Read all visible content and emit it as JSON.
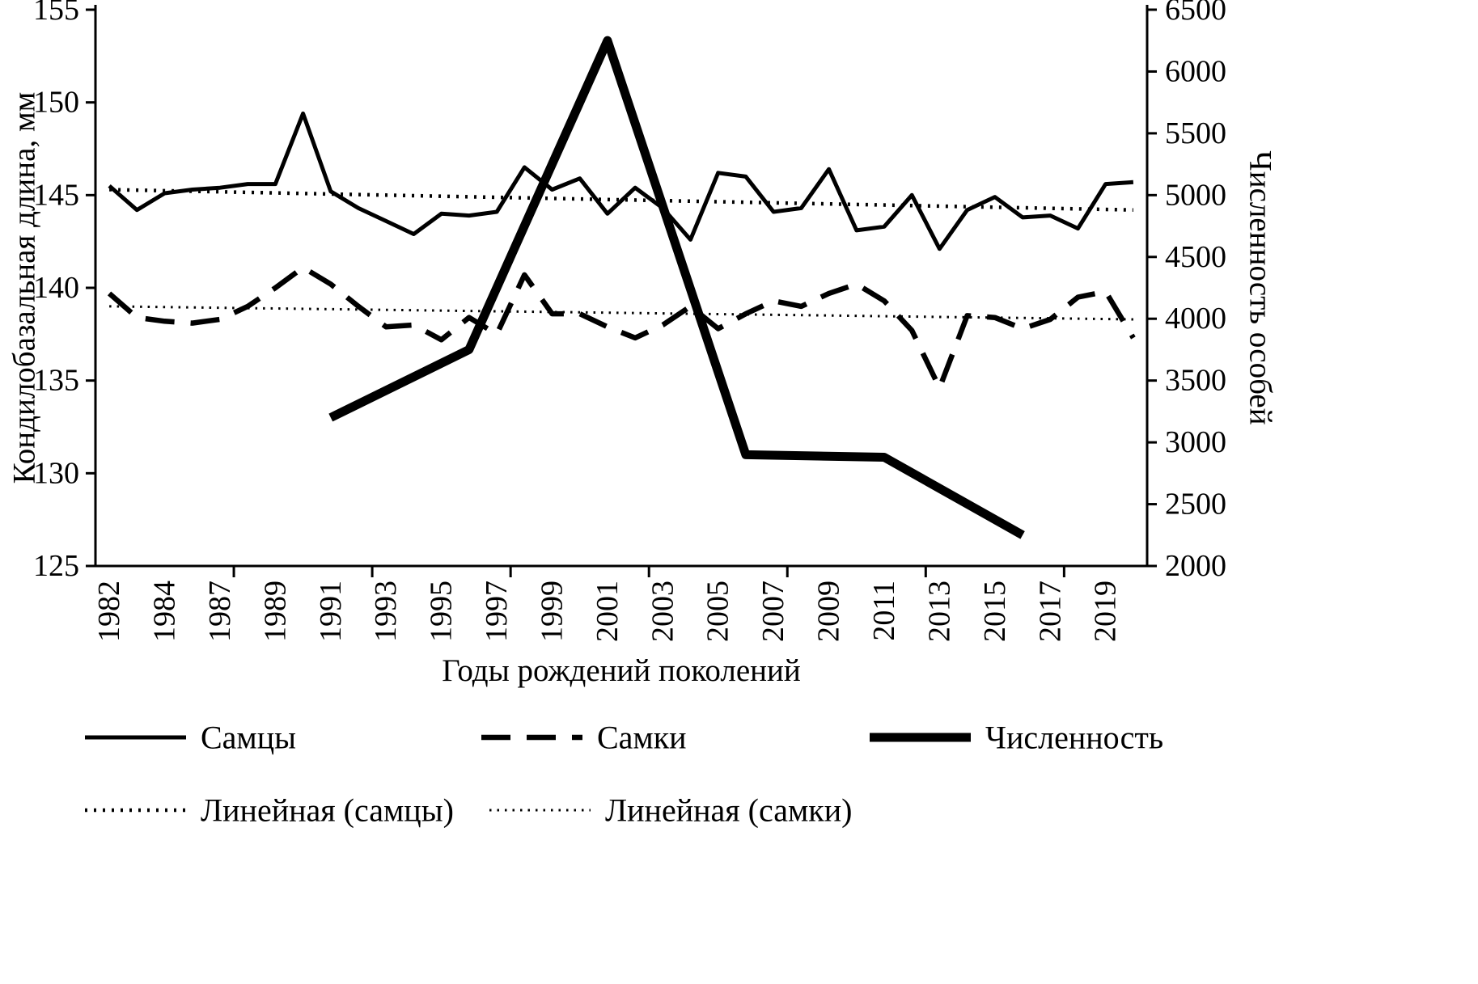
{
  "figure": {
    "legend_rows": [
      [
        "males",
        "females",
        "abundance"
      ],
      [
        "trend_males",
        "trend_females"
      ]
    ]
  },
  "chart_data": {
    "type": "line",
    "title": "",
    "x_label": "Годы рождений поколений",
    "y_left": {
      "label": "Кондилобазальная длина, мм",
      "range": [
        125,
        155
      ],
      "ticks": [
        125,
        130,
        135,
        140,
        145,
        150,
        155
      ]
    },
    "y_right": {
      "label": "Численность особей",
      "range": [
        2000,
        6500
      ],
      "ticks": [
        2000,
        2500,
        3000,
        3500,
        4000,
        4500,
        5000,
        5500,
        6000,
        6500
      ]
    },
    "x": {
      "years_start": 1982,
      "years_end": 2019,
      "label_every": 2,
      "tick_labels": [
        "1982",
        "1984",
        "1987",
        "1989",
        "1991",
        "1993",
        "1995",
        "1997",
        "1999",
        "2001",
        "2003",
        "2005",
        "2007",
        "2009",
        "2011",
        "2013",
        "2015",
        "2017",
        "2019"
      ]
    },
    "series": [
      {
        "id": "males",
        "label": "Самцы",
        "axis": "left",
        "line": "solid",
        "values": [
          145.5,
          144.2,
          145.1,
          145.3,
          145.4,
          145.6,
          145.6,
          149.4,
          145.2,
          144.3,
          143.6,
          142.9,
          144.0,
          143.9,
          144.1,
          146.5,
          145.3,
          145.9,
          144.0,
          145.4,
          144.3,
          142.6,
          146.2,
          146.0,
          144.1,
          144.3,
          146.4,
          143.1,
          143.3,
          145.0,
          142.1,
          144.2,
          144.9,
          143.8,
          143.9,
          143.2,
          145.6,
          145.7
        ]
      },
      {
        "id": "females",
        "label": "Самки",
        "axis": "left",
        "line": "dashed",
        "values": [
          139.7,
          138.4,
          138.2,
          138.1,
          138.3,
          139.0,
          140.0,
          141.1,
          140.2,
          139.0,
          137.9,
          138.0,
          137.2,
          138.4,
          137.5,
          140.7,
          138.6,
          138.6,
          137.9,
          137.3,
          138.0,
          139.0,
          137.8,
          138.6,
          139.3,
          139.0,
          139.7,
          140.2,
          139.3,
          137.7,
          134.6,
          138.5,
          138.4,
          137.8,
          138.3,
          139.5,
          139.8,
          137.3
        ]
      },
      {
        "id": "abundance",
        "label": "Численность",
        "axis": "right",
        "line": "thick",
        "points": [
          [
            1990,
            3200
          ],
          [
            1995,
            3750
          ],
          [
            2000,
            6250
          ],
          [
            2005,
            2900
          ],
          [
            2010,
            2880
          ],
          [
            2015,
            2250
          ]
        ]
      },
      {
        "id": "trend_males",
        "label": "Линейная (самцы)",
        "axis": "left",
        "line": "dotted_bold",
        "points": [
          [
            1982,
            145.3
          ],
          [
            2019,
            144.2
          ]
        ]
      },
      {
        "id": "trend_females",
        "label": "Линейная (самки)",
        "axis": "left",
        "line": "dotted_thin",
        "points": [
          [
            1982,
            139.0
          ],
          [
            2019,
            138.3
          ]
        ]
      }
    ]
  }
}
